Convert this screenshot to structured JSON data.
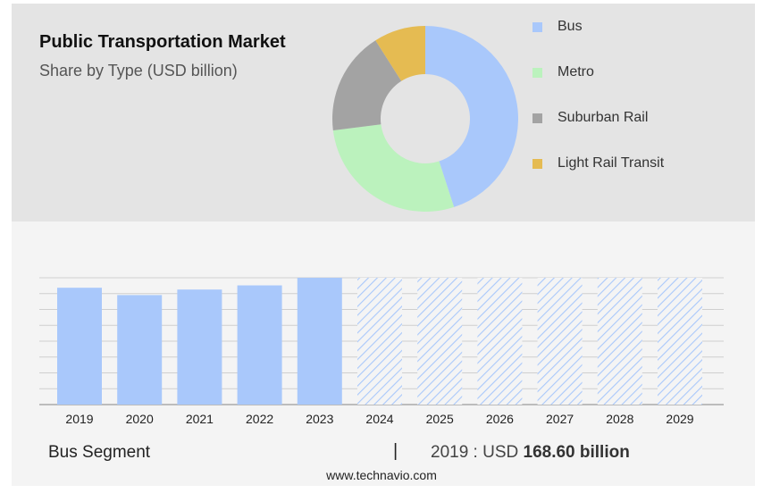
{
  "header": {
    "title": "Public Transportation Market",
    "subtitle": "Share by Type (USD billion)"
  },
  "legend": [
    {
      "label": "Bus",
      "color": "#a9c8fb"
    },
    {
      "label": "Metro",
      "color": "#bbf2bd"
    },
    {
      "label": "Suburban Rail",
      "color": "#a3a3a3"
    },
    {
      "label": "Light Rail Transit",
      "color": "#e5bb52"
    }
  ],
  "footer": {
    "segment": "Bus Segment",
    "separator": "|",
    "year_prefix": "2019 : USD ",
    "value_text": "168.60 billion",
    "source": "www.technavio.com"
  },
  "chart_data": [
    {
      "type": "pie",
      "categories": [
        "Bus",
        "Metro",
        "Suburban Rail",
        "Light Rail Transit"
      ],
      "values": [
        45,
        28,
        18,
        9
      ],
      "colors": [
        "#a9c8fb",
        "#bbf2bd",
        "#a3a3a3",
        "#e5bb52"
      ]
    },
    {
      "type": "bar",
      "categories": [
        "2019",
        "2020",
        "2021",
        "2022",
        "2023",
        "2024",
        "2025",
        "2026",
        "2027",
        "2028",
        "2029"
      ],
      "values": [
        168.6,
        158,
        166,
        172,
        183,
        null,
        null,
        null,
        null,
        null,
        null
      ],
      "forecast_from": "2024",
      "ylim": [
        0,
        183
      ],
      "grid": true,
      "bar_color": "#a9c8fb",
      "forecast_style": "hatched"
    }
  ]
}
